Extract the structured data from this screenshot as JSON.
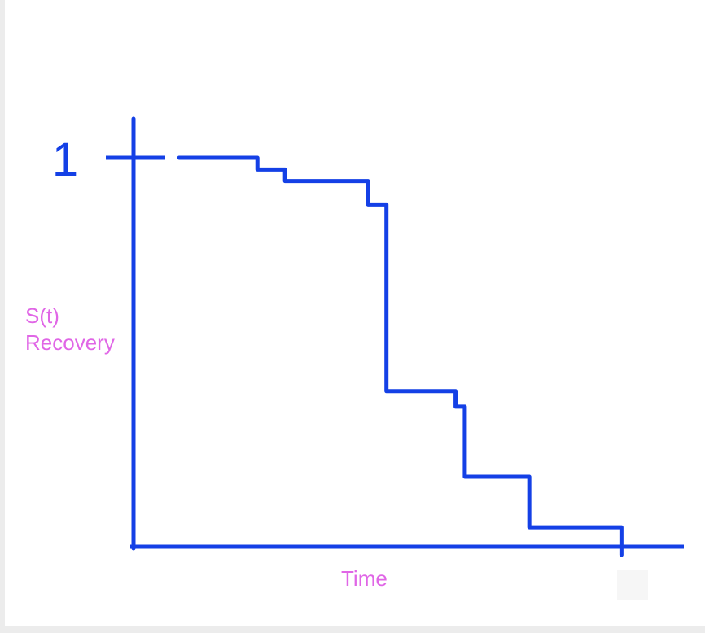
{
  "chart_data": {
    "type": "line",
    "style": "step",
    "title": "",
    "ylabel_line1": "S(t)",
    "ylabel_line2": "Recovery",
    "xlabel": "Time",
    "y_tick_label": "1",
    "ylim": [
      0,
      1
    ],
    "grid": false,
    "legend": "none",
    "series": [
      {
        "x": [
          0.0,
          0.17,
          0.23,
          0.41,
          0.45,
          0.6,
          0.62,
          0.76,
          0.81,
          0.96
        ],
        "y": [
          1.0,
          0.97,
          0.94,
          0.88,
          0.4,
          0.36,
          0.18,
          0.05,
          0.05,
          0.0
        ]
      }
    ],
    "colors": {
      "line": "#1440e6",
      "axis": "#1440e6",
      "label": "#e066e6"
    }
  }
}
